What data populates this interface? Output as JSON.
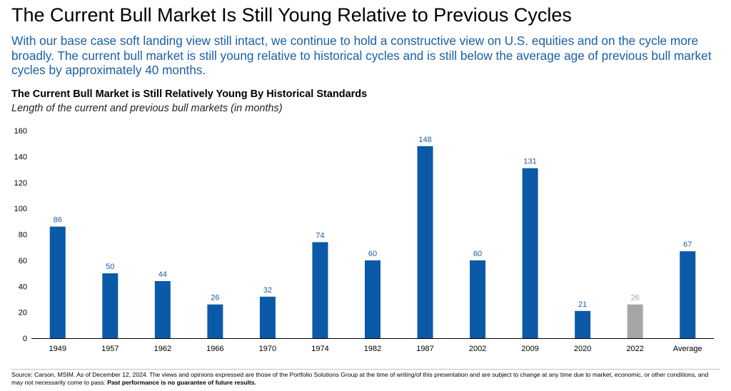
{
  "header": {
    "title": "The Current Bull Market Is Still Young Relative to Previous Cycles",
    "subtitle": "With our base case soft landing view still intact, we continue to hold a constructive view on U.S. equities and on the cycle more broadly. The current bull market is still young relative to historical cycles and is still below the average age of previous bull market cycles by approximately 40 months."
  },
  "chart_data": {
    "type": "bar",
    "title": "The Current Bull Market is Still Relatively Young By Historical Standards",
    "subtitle": "Length of the current and previous bull markets (in months)",
    "xlabel": "",
    "ylabel": "",
    "categories": [
      "1949",
      "1957",
      "1962",
      "1966",
      "1970",
      "1974",
      "1982",
      "1987",
      "2002",
      "2009",
      "2020",
      "2022",
      "Average"
    ],
    "values": [
      86,
      50,
      44,
      26,
      32,
      74,
      60,
      148,
      60,
      131,
      21,
      26,
      67
    ],
    "ylim": [
      0,
      160
    ],
    "yticks": [
      0,
      20,
      40,
      60,
      80,
      100,
      120,
      140,
      160
    ],
    "grid": false,
    "legend": "none",
    "colors": {
      "bar": "#0a5aa8",
      "highlight_bar": "#a6a6a6",
      "label": "#1a5fa8",
      "highlight_label": "#a6a6a6",
      "axis": "#000000"
    },
    "highlight_index": 11
  },
  "footnote": {
    "text": "Source: Carson, MSIM. As of December 12, 2024. The views and opinions expressed are those of the Portfolio Solutions Group at the time of writing/of this presentation and are subject to change at any time due to market, economic, or other conditions, and may not necessarily come to pass.",
    "bold": "Past performance is no guarantee of future results."
  }
}
